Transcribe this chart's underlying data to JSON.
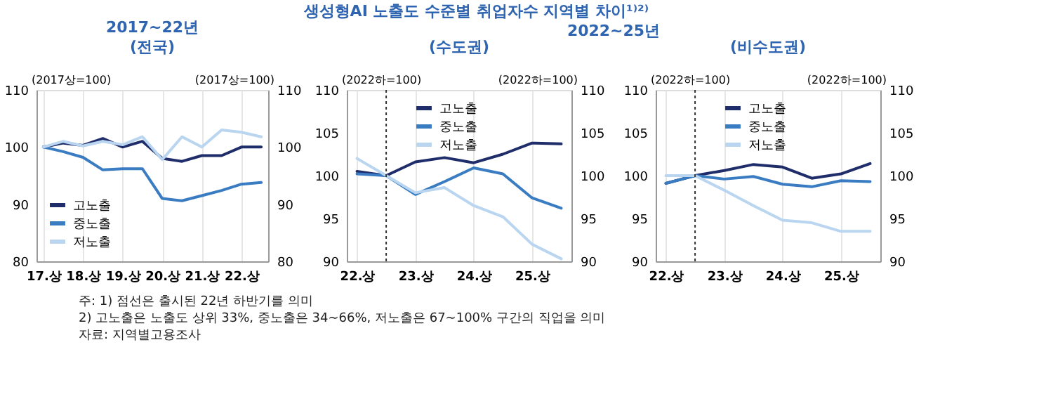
{
  "chart_data": [
    {
      "type": "other",
      "title": "생성형AI 노출도 수준별 취업자수 지역별 차이¹⁾²⁾",
      "annotations": [
        "주: 1) 점선은 출시된 22년 하반기를 의미",
        "2) 고노출은 노출도 상위 33%, 중노출은 34~66%, 저노출은 67~100% 구간의 직업을 의미",
        "자료: 지역별고용조사"
      ]
    },
    {
      "type": "line",
      "title": "2017~22년",
      "subtitle": "(전국)",
      "ylabel": "(2017상=100)",
      "y2label": "(2017상=100)",
      "categories": [
        "17.상",
        null,
        "18.상",
        null,
        "19.상",
        null,
        "20.상",
        null,
        "21.상",
        null,
        "22.상",
        null
      ],
      "ylim": [
        80,
        110
      ],
      "yticks": [
        80,
        90,
        100,
        110
      ],
      "y2lim": [
        80,
        110
      ],
      "y2ticks": [
        80,
        90,
        100,
        110
      ],
      "grid": "x",
      "legend": "bottom left",
      "marker": "none",
      "line_style": "solid",
      "series": [
        {
          "name": "고노출",
          "color": "#1f2d6b",
          "values": [
            100,
            100.7,
            100.3,
            101.5,
            100,
            101,
            98,
            97.5,
            98.5,
            98.5,
            100,
            100
          ]
        },
        {
          "name": "중노출",
          "color": "#3a7cc2",
          "values": [
            100,
            99.2,
            98.2,
            96,
            96.2,
            96.2,
            91,
            90.6,
            91.5,
            92.4,
            93.5,
            93.8
          ]
        },
        {
          "name": "저노출",
          "color": "#b9d5ef",
          "values": [
            100,
            101,
            100.2,
            101,
            100.4,
            101.8,
            97.8,
            101.8,
            100,
            103,
            102.6,
            101.8
          ]
        }
      ]
    },
    {
      "type": "line",
      "title": "2022~25년",
      "subtitle": "(수도권)",
      "ylabel": "(2022하=100)",
      "y2label": "(2022하=100)",
      "categories": [
        "22.상",
        null,
        "23.상",
        null,
        "24.상",
        null,
        "25.상",
        null
      ],
      "ylim": [
        90,
        110
      ],
      "yticks": [
        90,
        95,
        100,
        105,
        110
      ],
      "y2lim": [
        90,
        110
      ],
      "y2ticks": [
        90,
        95,
        100,
        105,
        110
      ],
      "grid": "x",
      "legend": "top left",
      "marker": "none",
      "line_style": "solid",
      "series": [
        {
          "name": "고노출",
          "color": "#1f2d6b",
          "values": [
            100.5,
            100,
            101.6,
            102.1,
            101.5,
            102.5,
            103.8,
            103.7
          ]
        },
        {
          "name": "중노출",
          "color": "#3a7cc2",
          "values": [
            100.2,
            100,
            97.8,
            99.3,
            100.9,
            100.2,
            97.4,
            96.2
          ]
        },
        {
          "name": "저노출",
          "color": "#b9d5ef",
          "values": [
            102,
            100,
            98,
            98.6,
            96.5,
            95.2,
            92,
            90.3
          ]
        }
      ]
    },
    {
      "type": "line",
      "subtitle": "(비수도권)",
      "ylabel": "(2022하=100)",
      "y2label": "(2022하=100)",
      "categories": [
        "22.상",
        null,
        "23.상",
        null,
        "24.상",
        null,
        "25.상",
        null
      ],
      "ylim": [
        90,
        110
      ],
      "yticks": [
        90,
        95,
        100,
        105,
        110
      ],
      "y2lim": [
        90,
        110
      ],
      "y2ticks": [
        90,
        95,
        100,
        105,
        110
      ],
      "grid": "x",
      "legend": "top left",
      "marker": "none",
      "line_style": "solid",
      "series": [
        {
          "name": "고노출",
          "color": "#1f2d6b",
          "values": [
            99.1,
            100,
            100.6,
            101.3,
            101,
            99.7,
            100.2,
            101.4
          ]
        },
        {
          "name": "중노출",
          "color": "#3a7cc2",
          "values": [
            99.1,
            100,
            99.6,
            99.9,
            99,
            98.7,
            99.4,
            99.3
          ]
        },
        {
          "name": "저노출",
          "color": "#b9d5ef",
          "values": [
            100,
            100,
            98.3,
            96.5,
            94.8,
            94.5,
            93.5,
            93.5
          ]
        }
      ]
    }
  ]
}
